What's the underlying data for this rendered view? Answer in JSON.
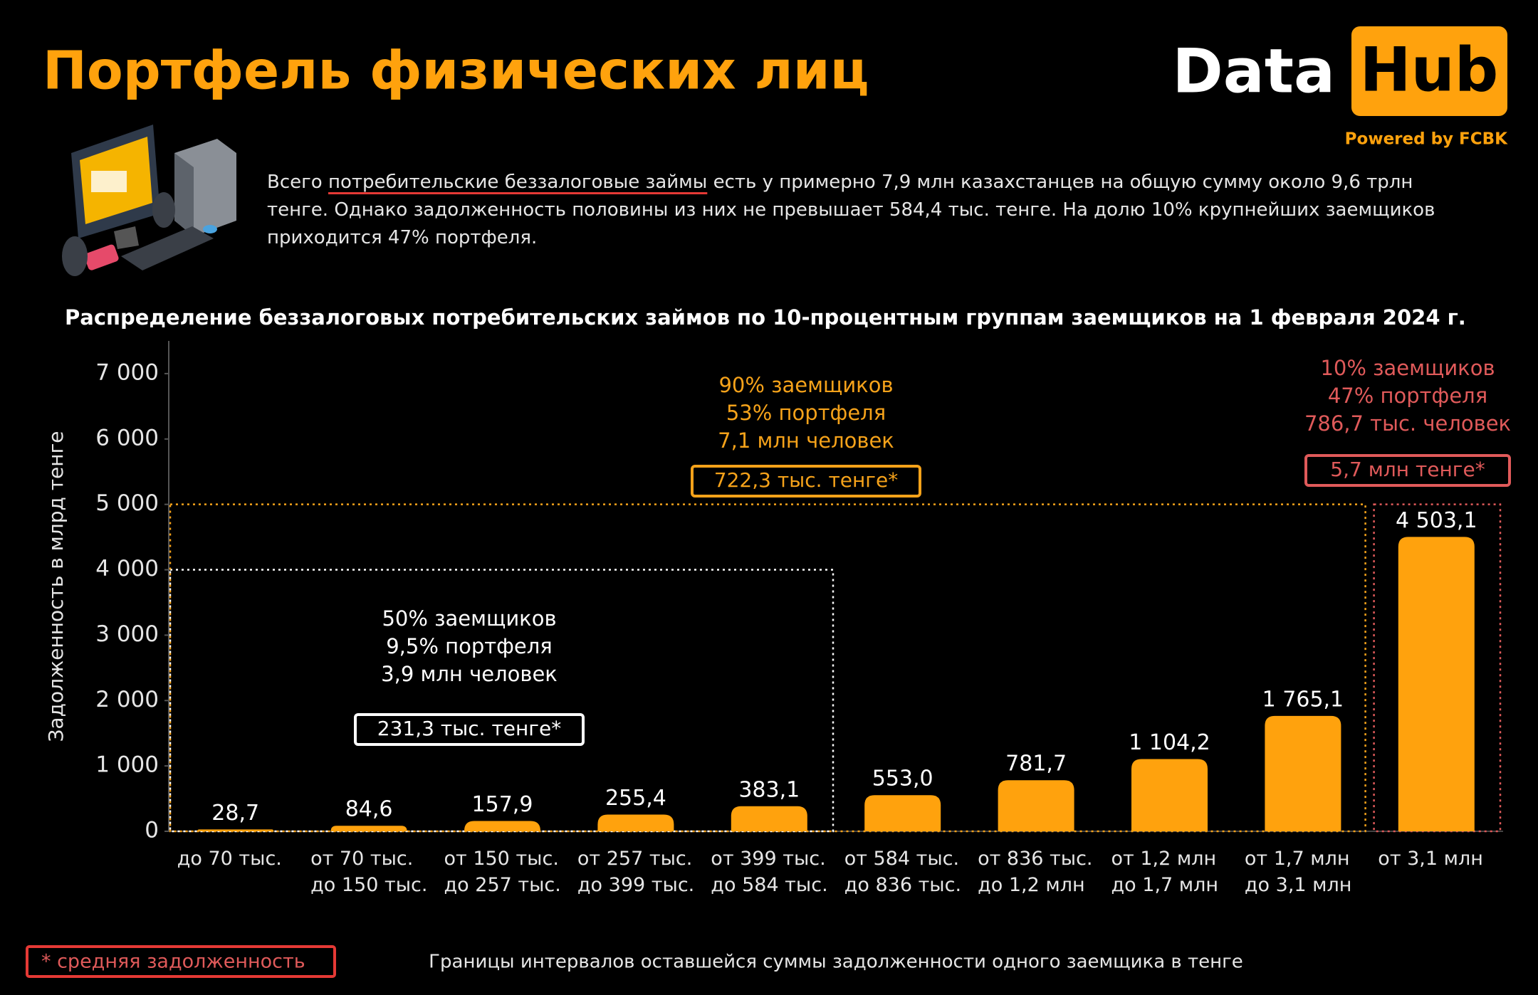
{
  "header": {
    "title": "Портфель физических лиц",
    "logo_left": "Data",
    "logo_right": "Hub",
    "logo_sub": "Powered by FCBK"
  },
  "intro": {
    "before": "Всего",
    "underlined": "потребительские беззалоговые займы",
    "after": "есть у примерно 7,9 млн казахстанцев на общую сумму около 9,6 трлн тенге. Однако задолженность половины из них не превышает 584,4 тыс. тенге. На долю 10% крупнейших заемщиков приходится 47% портфеля."
  },
  "chart_data": {
    "type": "bar",
    "title": "Распределение беззалоговых потребительских займов по 10-процентным группам заемщиков на 1 февраля 2024 г.",
    "ylabel": "Задолженность в млрд тенге",
    "xlabel": "Границы интервалов оставшейся суммы задолженности одного заемщика в тенге",
    "categories": [
      "до 70 тыс.",
      "от 70 тыс. до 150 тыс.",
      "от 150 тыс. до 257 тыс.",
      "от 257 тыс. до 399 тыс.",
      "от 399 тыс. до 584 тыс.",
      "от 584 тыс. до 836 тыс.",
      "от 836 тыс. до 1,2 млн",
      "от 1,2 млн до 1,7 млн",
      "от 1,7 млн до 3,1 млн",
      "от 3,1 млн"
    ],
    "values": [
      28.7,
      84.6,
      157.9,
      255.4,
      383.1,
      553.0,
      781.7,
      1104.2,
      1765.1,
      4503.1
    ],
    "value_labels": [
      "28,7",
      "84,6",
      "157,9",
      "255,4",
      "383,1",
      "553,0",
      "781,7",
      "1 104,2",
      "1 765,1",
      "4 503,1"
    ],
    "color": "#ffa20d",
    "ylim": [
      0,
      7500
    ],
    "yticks": [
      0,
      {
        "value": 1000,
        "label": "1 000"
      },
      {
        "value": 2000,
        "label": "2 000"
      },
      {
        "value": 3000,
        "label": "3 000"
      },
      {
        "value": 4000,
        "label": "4 000"
      },
      {
        "value": 5000,
        "label": "5 000"
      },
      {
        "value": 6000,
        "label": "6 000"
      },
      {
        "value": 7000,
        "label": "7 000"
      }
    ],
    "grid": false,
    "annotations": [
      {
        "lines": [
          "50% заемщиков",
          "9,5% портфеля",
          "3,9 млн человек"
        ],
        "average": "231,3 тыс. тенге*",
        "color": "#ffffff"
      },
      {
        "lines": [
          "90% заемщиков",
          "53% портфеля",
          "7,1 млн человек"
        ],
        "average": "722,3 тыс. тенге*",
        "color": "#f5a21a"
      },
      {
        "lines": [
          "10% заемщиков",
          "47% портфеля",
          "786,7 тыс. человек"
        ],
        "average": "5,7 млн тенге*",
        "color": "#e05a5a"
      }
    ],
    "footnote": "* средняя задолженность"
  }
}
